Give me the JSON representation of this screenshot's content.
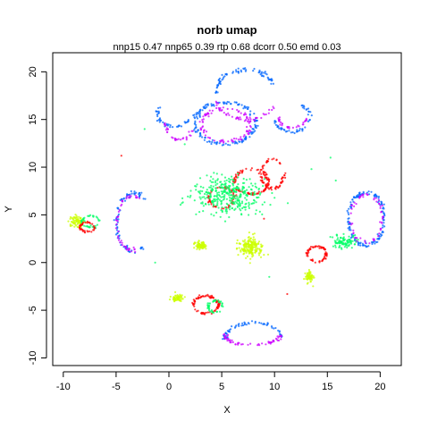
{
  "chart_data": {
    "type": "scatter",
    "title": "norb umap",
    "subtitle": "nnp15 0.47 nnp65 0.39 rtp 0.68 dcorr 0.50 emd 0.03",
    "xlabel": "X",
    "ylabel": "Y",
    "xlim": [
      -11,
      22
    ],
    "ylim": [
      -10.8,
      22
    ],
    "x_ticks": [
      -10,
      -5,
      0,
      5,
      10,
      15,
      20
    ],
    "y_ticks": [
      -10,
      -5,
      0,
      5,
      10,
      15,
      20
    ],
    "x_tick_labels": [
      "-10",
      "-5",
      "0",
      "5",
      "10",
      "15",
      "20"
    ],
    "y_tick_labels": [
      "-10",
      "-5",
      "0",
      "5",
      "10",
      "15",
      "20"
    ],
    "grid": false,
    "legend": "none",
    "colors": {
      "red": "#ff0000",
      "green": "#00ff66",
      "yellow": "#ccff00",
      "blue": "#0066ff",
      "magenta": "#cc00ff"
    },
    "clusters": [
      {
        "shape": "ring",
        "color": "red",
        "cx": 5.0,
        "cy": 6.8,
        "rx": 1.2,
        "ry": 1.1,
        "n": 60
      },
      {
        "shape": "ring",
        "color": "red",
        "cx": 7.8,
        "cy": 8.5,
        "rx": 1.6,
        "ry": 1.3,
        "n": 90
      },
      {
        "shape": "ring",
        "color": "red",
        "cx": 9.8,
        "cy": 9.3,
        "rx": 1.1,
        "ry": 1.5,
        "n": 70
      },
      {
        "shape": "blob",
        "color": "green",
        "cx": 5.5,
        "cy": 7.2,
        "sx": 4.2,
        "sy": 2.6,
        "n": 360
      },
      {
        "shape": "ring",
        "color": "blue",
        "cx": 5.3,
        "cy": 14.6,
        "rx": 2.9,
        "ry": 2.2,
        "n": 150
      },
      {
        "shape": "ring",
        "color": "magenta",
        "cx": 5.4,
        "cy": 14.4,
        "rx": 2.3,
        "ry": 1.7,
        "n": 90
      },
      {
        "shape": "arc",
        "color": "blue",
        "cx": 7.3,
        "cy": 17.8,
        "rx": 2.8,
        "ry": 2.5,
        "a0": 20,
        "a1": 180,
        "n": 70
      },
      {
        "shape": "arc",
        "color": "magenta",
        "cx": 7.3,
        "cy": 17.8,
        "rx": 3.1,
        "ry": 2.8,
        "a0": 200,
        "a1": 330,
        "n": 40
      },
      {
        "shape": "arc",
        "color": "blue",
        "cx": 11.7,
        "cy": 15.2,
        "rx": 1.7,
        "ry": 1.5,
        "a0": 190,
        "a1": 420,
        "n": 50
      },
      {
        "shape": "arc",
        "color": "magenta",
        "cx": 11.7,
        "cy": 15.2,
        "rx": 1.3,
        "ry": 1.1,
        "a0": 180,
        "a1": 360,
        "n": 30
      },
      {
        "shape": "arc",
        "color": "blue",
        "cx": 0.5,
        "cy": 15.6,
        "rx": 1.6,
        "ry": 1.3,
        "a0": 140,
        "a1": 340,
        "n": 40
      },
      {
        "shape": "arc",
        "color": "magenta",
        "cx": 1.0,
        "cy": 14.5,
        "rx": 1.3,
        "ry": 1.6,
        "a0": 180,
        "a1": 340,
        "n": 30
      },
      {
        "shape": "arc",
        "color": "blue",
        "cx": -3.3,
        "cy": 4.2,
        "rx": 1.6,
        "ry": 3.1,
        "a0": 50,
        "a1": 300,
        "n": 80
      },
      {
        "shape": "arc",
        "color": "magenta",
        "cx": -3.5,
        "cy": 4.1,
        "rx": 1.4,
        "ry": 2.8,
        "a0": 60,
        "a1": 290,
        "n": 50
      },
      {
        "shape": "ring",
        "color": "blue",
        "cx": 18.7,
        "cy": 4.6,
        "rx": 1.7,
        "ry": 2.8,
        "n": 140
      },
      {
        "shape": "ring",
        "color": "magenta",
        "cx": 18.7,
        "cy": 4.6,
        "rx": 1.5,
        "ry": 2.5,
        "n": 60
      },
      {
        "shape": "blob",
        "color": "green",
        "cx": 16.6,
        "cy": 2.2,
        "sx": 1.4,
        "sy": 0.9,
        "n": 90
      },
      {
        "shape": "ring",
        "color": "red",
        "cx": 14.0,
        "cy": 0.9,
        "rx": 0.9,
        "ry": 0.8,
        "n": 70
      },
      {
        "shape": "blob",
        "color": "yellow",
        "cx": 13.3,
        "cy": -1.5,
        "sx": 0.6,
        "sy": 0.8,
        "n": 60
      },
      {
        "shape": "blob",
        "color": "yellow",
        "cx": 7.8,
        "cy": 1.6,
        "sx": 1.3,
        "sy": 1.4,
        "n": 180
      },
      {
        "shape": "blob",
        "color": "yellow",
        "cx": 3.0,
        "cy": 1.8,
        "sx": 0.7,
        "sy": 0.6,
        "n": 70
      },
      {
        "shape": "blob",
        "color": "yellow",
        "cx": 0.8,
        "cy": -3.7,
        "sx": 0.9,
        "sy": 0.5,
        "n": 60
      },
      {
        "shape": "ring",
        "color": "red",
        "cx": 3.5,
        "cy": -4.4,
        "rx": 1.2,
        "ry": 0.9,
        "n": 90
      },
      {
        "shape": "ring",
        "color": "green",
        "cx": 4.4,
        "cy": -4.6,
        "rx": 0.7,
        "ry": 0.6,
        "n": 40
      },
      {
        "shape": "blob",
        "color": "yellow",
        "cx": -8.7,
        "cy": 4.3,
        "sx": 0.9,
        "sy": 0.7,
        "n": 80
      },
      {
        "shape": "ring",
        "color": "green",
        "cx": -7.4,
        "cy": 4.3,
        "rx": 0.8,
        "ry": 0.6,
        "n": 40
      },
      {
        "shape": "ring",
        "color": "red",
        "cx": -7.7,
        "cy": 3.7,
        "rx": 0.7,
        "ry": 0.5,
        "n": 40
      },
      {
        "shape": "arc",
        "color": "blue",
        "cx": 8.0,
        "cy": -8.2,
        "rx": 2.8,
        "ry": 1.9,
        "a0": 10,
        "a1": 180,
        "n": 60
      },
      {
        "shape": "arc",
        "color": "magenta",
        "cx": 7.9,
        "cy": -7.7,
        "rx": 2.6,
        "ry": 0.9,
        "a0": 170,
        "a1": 370,
        "n": 60
      }
    ],
    "outliers": [
      {
        "x": -4.5,
        "y": 11.2,
        "color": "red"
      },
      {
        "x": 11.2,
        "y": -3.3,
        "color": "red"
      },
      {
        "x": 9.0,
        "y": 4.6,
        "color": "red"
      },
      {
        "x": 13.5,
        "y": 9.8,
        "color": "green"
      },
      {
        "x": 15.3,
        "y": 11.0,
        "color": "green"
      },
      {
        "x": -1.3,
        "y": 0.0,
        "color": "green"
      },
      {
        "x": 1.5,
        "y": 12.4,
        "color": "green"
      },
      {
        "x": 15.8,
        "y": 8.6,
        "color": "green"
      },
      {
        "x": 9.5,
        "y": -1.5,
        "color": "green"
      },
      {
        "x": -2.3,
        "y": 14.0,
        "color": "green"
      }
    ]
  }
}
